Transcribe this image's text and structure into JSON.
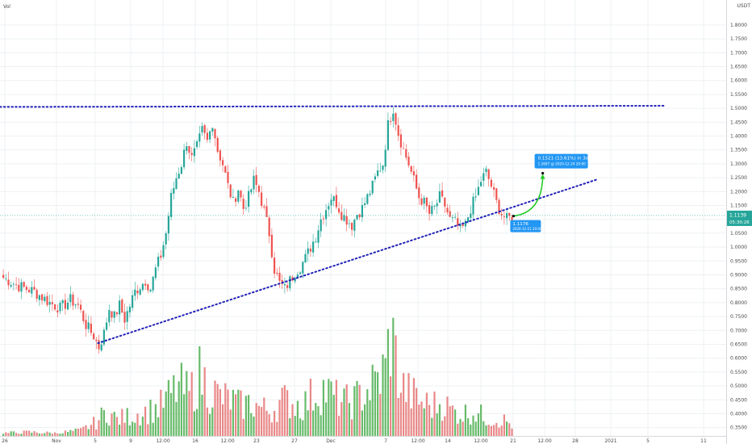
{
  "header": {
    "volume_label": "Vol"
  },
  "chart_data": {
    "type": "candlestick",
    "currency": "USDT",
    "ylim": [
      0.32,
      1.89
    ],
    "y_ticks": [
      "1.8000",
      "1.7500",
      "1.7000",
      "1.6500",
      "1.6000",
      "1.5500",
      "1.5000",
      "1.4500",
      "1.4000",
      "1.3500",
      "1.3000",
      "1.2500",
      "1.2000",
      "1.1500",
      "1.1000",
      "1.0500",
      "1.0000",
      "0.9500",
      "0.9000",
      "0.8500",
      "0.8000",
      "0.7500",
      "0.7000",
      "0.6500",
      "0.6000",
      "0.5500",
      "0.5000",
      "0.4500",
      "0.4000",
      "0.3500"
    ],
    "y_tick_values": [
      1.8,
      1.75,
      1.7,
      1.65,
      1.6,
      1.55,
      1.5,
      1.45,
      1.4,
      1.35,
      1.3,
      1.25,
      1.2,
      1.15,
      1.1,
      1.05,
      1.0,
      0.95,
      0.9,
      0.85,
      0.8,
      0.75,
      0.7,
      0.65,
      0.6,
      0.55,
      0.5,
      0.45,
      0.4,
      0.35
    ],
    "x_ticks": [
      "26",
      "Nov",
      "5",
      "9",
      "12:00",
      "16",
      "12:00",
      "23",
      "27",
      "Dec",
      "7",
      "12:00",
      "14",
      "12:00",
      "21",
      "12:00",
      "28",
      "2021",
      "5",
      "11"
    ],
    "price_marker": {
      "price": "1.1139",
      "countdown": "05:30:26"
    },
    "price_path": [
      [
        0,
        0.89
      ],
      [
        6,
        0.86
      ],
      [
        12,
        0.84
      ],
      [
        18,
        0.8
      ],
      [
        22,
        0.78
      ],
      [
        26,
        0.81
      ],
      [
        29,
        0.79
      ],
      [
        32,
        0.72
      ],
      [
        35,
        0.68
      ],
      [
        37,
        0.64
      ],
      [
        39,
        0.69
      ],
      [
        41,
        0.78
      ],
      [
        43,
        0.75
      ],
      [
        45,
        0.79
      ],
      [
        47,
        0.74
      ],
      [
        49,
        0.79
      ],
      [
        51,
        0.84
      ],
      [
        53,
        0.86
      ],
      [
        55,
        0.88
      ],
      [
        57,
        0.85
      ],
      [
        59,
        0.92
      ],
      [
        61,
        0.97
      ],
      [
        63,
        1.05
      ],
      [
        65,
        1.18
      ],
      [
        67,
        1.25
      ],
      [
        69,
        1.3
      ],
      [
        71,
        1.38
      ],
      [
        73,
        1.32
      ],
      [
        75,
        1.36
      ],
      [
        77,
        1.42
      ],
      [
        79,
        1.38
      ],
      [
        81,
        1.45
      ],
      [
        83,
        1.35
      ],
      [
        85,
        1.3
      ],
      [
        87,
        1.22
      ],
      [
        89,
        1.16
      ],
      [
        91,
        1.21
      ],
      [
        93,
        1.14
      ],
      [
        95,
        1.18
      ],
      [
        97,
        1.24
      ],
      [
        99,
        1.2
      ],
      [
        101,
        1.13
      ],
      [
        103,
        1.05
      ],
      [
        105,
        0.92
      ],
      [
        107,
        0.87
      ],
      [
        109,
        0.85
      ],
      [
        111,
        0.88
      ],
      [
        113,
        0.91
      ],
      [
        115,
        0.93
      ],
      [
        117,
        0.96
      ],
      [
        119,
        1.0
      ],
      [
        121,
        1.04
      ],
      [
        123,
        1.1
      ],
      [
        125,
        1.14
      ],
      [
        127,
        1.18
      ],
      [
        129,
        1.16
      ],
      [
        131,
        1.12
      ],
      [
        133,
        1.1
      ],
      [
        135,
        1.08
      ],
      [
        137,
        1.12
      ],
      [
        139,
        1.14
      ],
      [
        141,
        1.18
      ],
      [
        143,
        1.22
      ],
      [
        145,
        1.27
      ],
      [
        147,
        1.3
      ],
      [
        149,
        1.44
      ],
      [
        151,
        1.5
      ],
      [
        153,
        1.41
      ],
      [
        155,
        1.35
      ],
      [
        157,
        1.3
      ],
      [
        159,
        1.24
      ],
      [
        161,
        1.18
      ],
      [
        163,
        1.16
      ],
      [
        165,
        1.12
      ],
      [
        167,
        1.14
      ],
      [
        169,
        1.18
      ],
      [
        171,
        1.15
      ],
      [
        173,
        1.1
      ],
      [
        175,
        1.09
      ],
      [
        177,
        1.06
      ],
      [
        179,
        1.08
      ],
      [
        181,
        1.14
      ],
      [
        183,
        1.18
      ],
      [
        185,
        1.24
      ],
      [
        187,
        1.27
      ],
      [
        189,
        1.22
      ],
      [
        191,
        1.16
      ],
      [
        193,
        1.12
      ],
      [
        195,
        1.1
      ],
      [
        197,
        1.11
      ]
    ],
    "volume_path": [
      [
        0,
        0.005
      ],
      [
        10,
        0.007
      ],
      [
        20,
        0.005
      ],
      [
        30,
        0.01
      ],
      [
        36,
        0.025
      ],
      [
        40,
        0.045
      ],
      [
        44,
        0.03
      ],
      [
        48,
        0.035
      ],
      [
        52,
        0.04
      ],
      [
        56,
        0.045
      ],
      [
        60,
        0.05
      ],
      [
        64,
        0.07
      ],
      [
        68,
        0.09
      ],
      [
        72,
        0.075
      ],
      [
        76,
        0.11
      ],
      [
        80,
        0.085
      ],
      [
        84,
        0.07
      ],
      [
        88,
        0.065
      ],
      [
        92,
        0.055
      ],
      [
        96,
        0.06
      ],
      [
        100,
        0.05
      ],
      [
        104,
        0.045
      ],
      [
        108,
        0.065
      ],
      [
        112,
        0.06
      ],
      [
        116,
        0.055
      ],
      [
        120,
        0.075
      ],
      [
        124,
        0.085
      ],
      [
        128,
        0.07
      ],
      [
        132,
        0.06
      ],
      [
        136,
        0.065
      ],
      [
        140,
        0.08
      ],
      [
        144,
        0.095
      ],
      [
        148,
        0.12
      ],
      [
        150,
        0.19
      ],
      [
        152,
        0.14
      ],
      [
        154,
        0.09
      ],
      [
        158,
        0.075
      ],
      [
        162,
        0.06
      ],
      [
        166,
        0.055
      ],
      [
        170,
        0.06
      ],
      [
        174,
        0.045
      ],
      [
        178,
        0.04
      ],
      [
        182,
        0.045
      ],
      [
        186,
        0.035
      ],
      [
        190,
        0.03
      ],
      [
        194,
        0.028
      ],
      [
        197,
        0.02
      ]
    ],
    "resistance_line": {
      "price": 1.505
    },
    "support_line": {
      "start": [
        37,
        0.654
      ],
      "slope_per_bar": 0.00305,
      "extend_bars": 165
    },
    "projection": {
      "from": [
        197,
        1.112
      ],
      "to": [
        208,
        1.266
      ],
      "label": "0.1521 (13.61%) in 3d",
      "sublabel": "1.2697 @ 2020-12-24 20:00",
      "point_label": "1.1176",
      "point_sublabel": "2020-12-21 20:00"
    },
    "colors": {
      "up": "#26a69a",
      "down": "#ef5350",
      "vol_up": "#4caf50",
      "vol_down": "#e57373",
      "trendline": "#2121b8",
      "projection": "#22cc22",
      "tag": "#2196f3",
      "price_tag": "#26a69a",
      "grid": "#eef0f3"
    }
  }
}
